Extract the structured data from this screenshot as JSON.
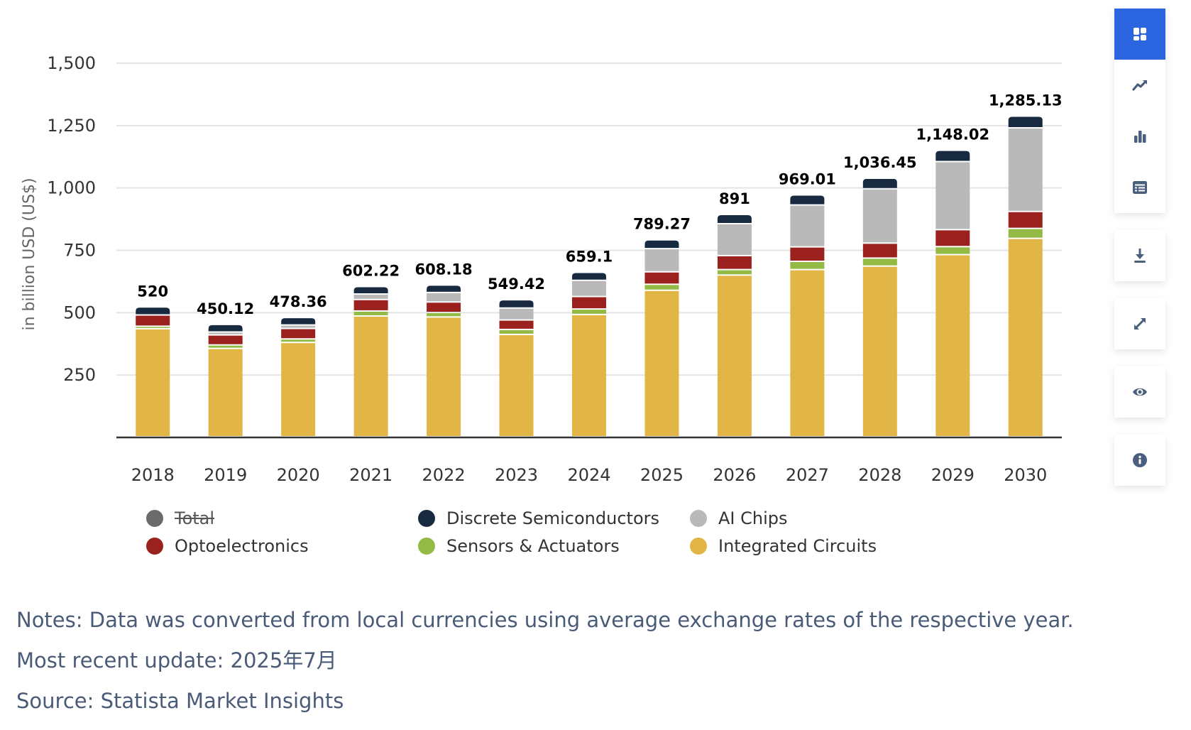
{
  "chart_data": {
    "type": "bar",
    "stacked": true,
    "title": "",
    "xlabel": "",
    "ylabel": "in billion USD (US$)",
    "ylim": [
      0,
      1500
    ],
    "yticks": [
      250,
      500,
      750,
      1000,
      1250,
      1500
    ],
    "ytick_labels": [
      "250",
      "500",
      "750",
      "1,000",
      "1,250",
      "1,500"
    ],
    "grid": true,
    "legend_position": "bottom",
    "categories": [
      "2018",
      "2019",
      "2020",
      "2021",
      "2022",
      "2023",
      "2024",
      "2025",
      "2026",
      "2027",
      "2028",
      "2029",
      "2030"
    ],
    "totals": [
      520,
      450.12,
      478.36,
      602.22,
      608.18,
      549.42,
      659.1,
      789.27,
      891,
      969.01,
      1036.45,
      1148.02,
      1285.13
    ],
    "total_labels": [
      "520",
      "450.12",
      "478.36",
      "602.22",
      "608.18",
      "549.42",
      "659.1",
      "789.27",
      "891",
      "969.01",
      "1,036.45",
      "1,148.02",
      "1,285.13"
    ],
    "series": [
      {
        "name": "Integrated Circuits",
        "color": "#e2b646",
        "values": [
          433,
          354,
          378,
          484,
          480,
          410,
          490,
          587,
          648,
          670,
          684,
          730,
          795
        ]
      },
      {
        "name": "Sensors & Actuators",
        "color": "#93ba45",
        "values": [
          10,
          14,
          14,
          20,
          18,
          20,
          22,
          24,
          22,
          33,
          32,
          32,
          40
        ]
      },
      {
        "name": "Optoelectronics",
        "color": "#9a211d",
        "values": [
          45,
          40,
          42,
          46,
          42,
          38,
          50,
          50,
          56,
          58,
          60,
          68,
          68
        ]
      },
      {
        "name": "AI Chips",
        "color": "#b9b9b9",
        "values": [
          0,
          12,
          14,
          22,
          38,
          48,
          65,
          93,
          128,
          168,
          218,
          273,
          335
        ]
      },
      {
        "name": "Discrete Semiconductors",
        "color": "#172a40",
        "values": [
          32,
          30,
          30,
          30,
          30,
          33,
          32,
          35,
          37,
          40,
          42,
          45,
          47
        ]
      }
    ]
  },
  "legend": {
    "items": [
      {
        "label": "Total",
        "color": "#6b6b6b",
        "hidden": true
      },
      {
        "label": "Discrete Semiconductors",
        "color": "#172a40",
        "hidden": false
      },
      {
        "label": "AI Chips",
        "color": "#b9b9b9",
        "hidden": false
      },
      {
        "label": "Optoelectronics",
        "color": "#9a211d",
        "hidden": false
      },
      {
        "label": "Sensors & Actuators",
        "color": "#93ba45",
        "hidden": false
      },
      {
        "label": "Integrated Circuits",
        "color": "#e2b646",
        "hidden": false
      }
    ]
  },
  "notes": {
    "line1": "Notes: Data was converted from local currencies using average exchange rates of the respective year.",
    "line2": "Most recent update: 2025年7月",
    "line3": "Source: Statista Market Insights"
  },
  "toolbar": {
    "accent": "#2b65df",
    "icon_color": "#4a5e7e",
    "view_group": [
      {
        "icon": "dashboard-icon",
        "active": true
      },
      {
        "icon": "trend-line-icon",
        "active": false
      },
      {
        "icon": "bar-chart-icon",
        "active": false
      },
      {
        "icon": "table-icon",
        "active": false
      }
    ],
    "actions": [
      {
        "icon": "download-icon"
      },
      {
        "icon": "expand-icon"
      },
      {
        "icon": "eye-icon"
      },
      {
        "icon": "info-icon"
      }
    ]
  }
}
